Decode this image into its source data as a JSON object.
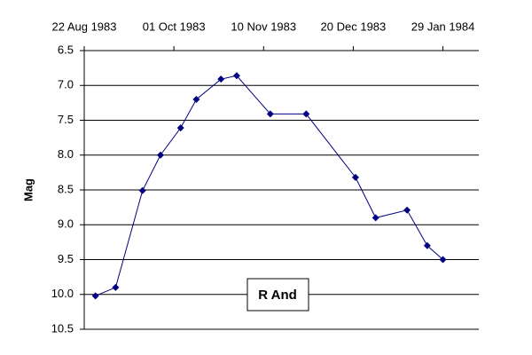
{
  "chart_data": {
    "type": "line",
    "y_label": "Mag",
    "annotation": "R And",
    "color": "#000080",
    "invert_y": true,
    "grid": true,
    "x": [
      "1983-08-27",
      "1983-09-05",
      "1983-09-17",
      "1983-09-25",
      "1983-10-04",
      "1983-10-11",
      "1983-10-22",
      "1983-10-29",
      "1983-11-13",
      "1983-11-29",
      "1983-12-21",
      "1983-12-30",
      "1984-01-13",
      "1984-01-22",
      "1984-01-29"
    ],
    "values": [
      10.02,
      9.9,
      8.51,
      8.0,
      7.61,
      7.2,
      6.91,
      6.86,
      7.41,
      7.41,
      8.32,
      8.9,
      8.79,
      9.3,
      9.5
    ],
    "xlim": [
      "1983-08-22",
      "1984-02-14"
    ],
    "xticks": [
      {
        "value": "1983-08-22",
        "label": "22 Aug 1983"
      },
      {
        "value": "1983-10-01",
        "label": "01 Oct 1983"
      },
      {
        "value": "1983-11-10",
        "label": "10 Nov 1983"
      },
      {
        "value": "1983-12-20",
        "label": "20 Dec 1983"
      },
      {
        "value": "1984-01-29",
        "label": "29 Jan 1984"
      }
    ],
    "ylim": [
      6.5,
      10.5
    ],
    "yticks": [
      6.5,
      {
        "value": 7,
        "label": "7.0"
      },
      7.5,
      {
        "value": 8,
        "label": "8.0"
      },
      8.5,
      {
        "value": 9,
        "label": "9.0"
      },
      9.5,
      {
        "value": 10,
        "label": "10.0"
      },
      10.5
    ]
  }
}
